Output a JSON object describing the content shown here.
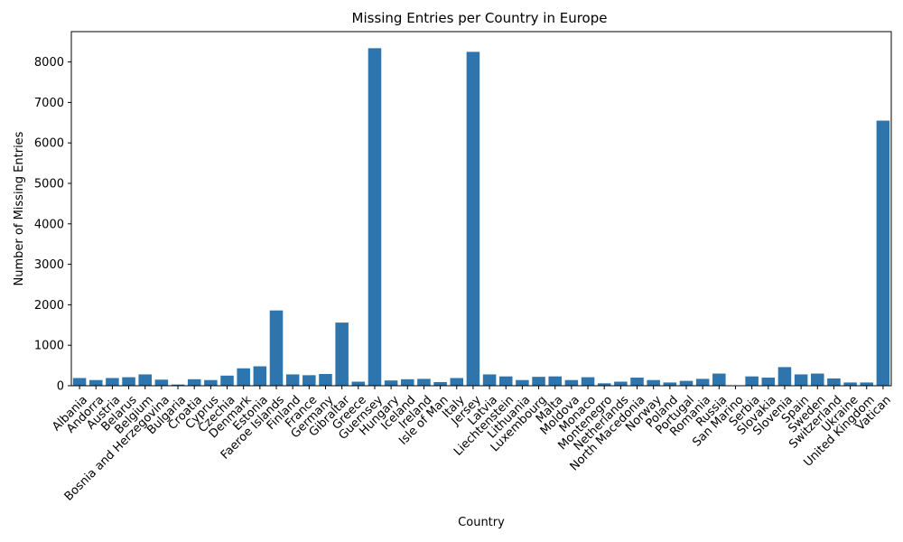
{
  "chart_data": {
    "type": "bar",
    "title": "Missing Entries per Country in Europe",
    "xlabel": "Country",
    "ylabel": "Number of Missing Entries",
    "ylim": [
      0,
      8750
    ],
    "yticks": [
      0,
      1000,
      2000,
      3000,
      4000,
      5000,
      6000,
      7000,
      8000
    ],
    "grid": false,
    "bar_color": "#2e75ad",
    "categories": [
      "Albania",
      "Andorra",
      "Austria",
      "Belarus",
      "Belgium",
      "Bosnia and Herzegovina",
      "Bulgaria",
      "Croatia",
      "Cyprus",
      "Czechia",
      "Denmark",
      "Estonia",
      "Faeroe Islands",
      "Finland",
      "France",
      "Germany",
      "Gibraltar",
      "Greece",
      "Guernsey",
      "Hungary",
      "Iceland",
      "Ireland",
      "Isle of Man",
      "Italy",
      "Jersey",
      "Latvia",
      "Liechtenstein",
      "Lithuania",
      "Luxembourg",
      "Malta",
      "Moldova",
      "Monaco",
      "Montenegro",
      "Netherlands",
      "North Macedonia",
      "Norway",
      "Poland",
      "Portugal",
      "Romania",
      "Russia",
      "San Marino",
      "Serbia",
      "Slovakia",
      "Slovenia",
      "Spain",
      "Sweden",
      "Switzerland",
      "Ukraine",
      "United Kingdom",
      "Vatican"
    ],
    "values": [
      190,
      140,
      190,
      210,
      280,
      150,
      30,
      160,
      140,
      250,
      430,
      480,
      1860,
      280,
      260,
      290,
      1560,
      100,
      8340,
      130,
      160,
      170,
      90,
      190,
      8250,
      280,
      230,
      140,
      220,
      230,
      140,
      210,
      60,
      100,
      200,
      140,
      80,
      120,
      170,
      300,
      10,
      230,
      200,
      460,
      280,
      300,
      180,
      80,
      80,
      6550
    ]
  }
}
